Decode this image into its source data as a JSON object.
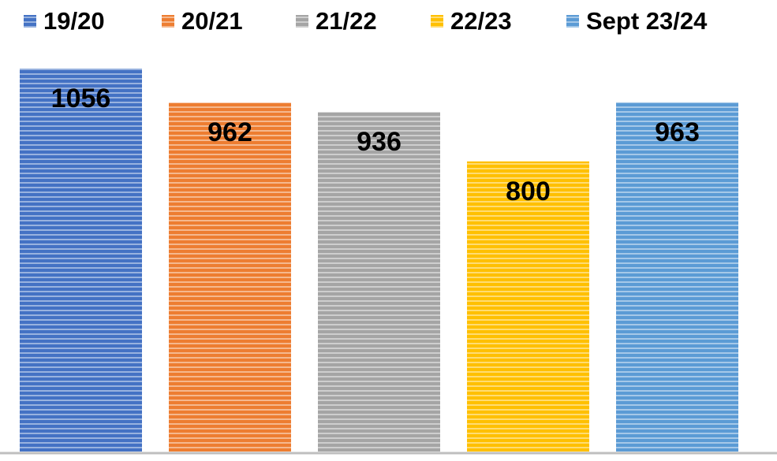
{
  "chart_data": {
    "type": "bar",
    "series": [
      {
        "name": "19/20",
        "color": "#4472c4",
        "values": [
          1056
        ]
      },
      {
        "name": "20/21",
        "color": "#ed7d31",
        "values": [
          962
        ]
      },
      {
        "name": "21/22",
        "color": "#a5a5a5",
        "values": [
          936
        ]
      },
      {
        "name": "22/23",
        "color": "#ffc000",
        "values": [
          800
        ]
      },
      {
        "name": "Sept 23/24",
        "color": "#5b9bd5",
        "values": [
          963
        ]
      }
    ]
  }
}
